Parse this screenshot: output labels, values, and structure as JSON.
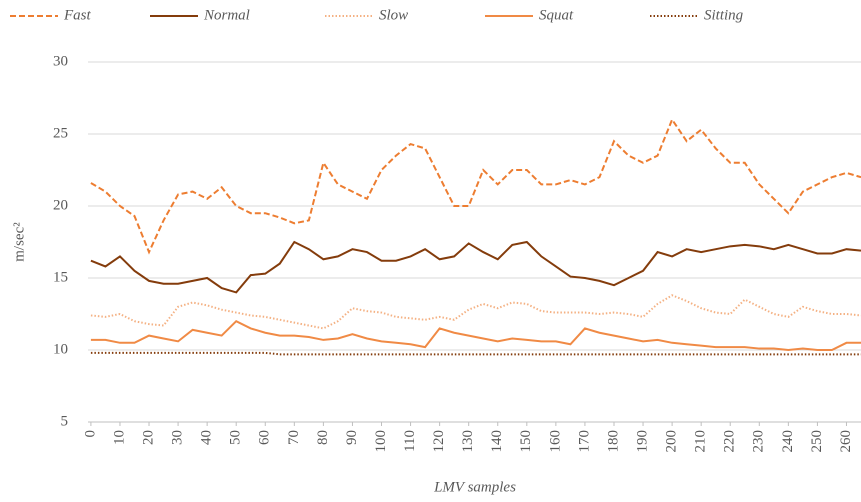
{
  "chart_data": {
    "type": "line",
    "xlabel": "LMV samples",
    "ylabel": "m/sec²",
    "x": [
      0,
      5,
      10,
      15,
      20,
      25,
      30,
      35,
      40,
      45,
      50,
      55,
      60,
      65,
      70,
      75,
      80,
      85,
      90,
      95,
      100,
      105,
      110,
      115,
      120,
      125,
      130,
      135,
      140,
      145,
      150,
      155,
      160,
      165,
      170,
      175,
      180,
      185,
      190,
      195,
      200,
      205,
      210,
      215,
      220,
      225,
      230,
      235,
      240,
      245,
      250,
      255,
      260,
      265
    ],
    "xlim": [
      -1,
      265
    ],
    "xticks": [
      0,
      10,
      20,
      30,
      40,
      50,
      60,
      70,
      80,
      90,
      100,
      110,
      120,
      130,
      140,
      150,
      160,
      170,
      180,
      190,
      200,
      210,
      220,
      230,
      240,
      250,
      260
    ],
    "ylim": [
      5,
      30
    ],
    "yticks": [
      5,
      10,
      15,
      20,
      25,
      30
    ],
    "grid": true,
    "legend": "top",
    "series": [
      {
        "name": "Fast",
        "color": "#ed7d31",
        "dash": "dashed",
        "values": [
          21.6,
          21,
          20,
          19.3,
          16.8,
          19,
          20.8,
          21,
          20.5,
          21.3,
          20,
          19.5,
          19.5,
          19.2,
          18.8,
          19,
          23,
          21.5,
          21,
          20.5,
          22.5,
          23.5,
          24.3,
          24,
          22,
          20,
          20,
          22.5,
          21.5,
          22.5,
          22.5,
          21.5,
          21.5,
          21.8,
          21.5,
          22,
          24.5,
          23.5,
          23,
          23.5,
          26,
          24.5,
          25.3,
          24,
          23,
          23,
          21.5,
          20.5,
          19.5,
          21,
          21.5,
          22,
          22.3,
          22
        ]
      },
      {
        "name": "Normal",
        "color": "#843c0c",
        "dash": "solid",
        "values": [
          16.2,
          15.8,
          16.5,
          15.5,
          14.8,
          14.6,
          14.6,
          14.8,
          15,
          14.3,
          14,
          15.2,
          15.3,
          16,
          17.5,
          17,
          16.3,
          16.5,
          17,
          16.8,
          16.2,
          16.2,
          16.5,
          17,
          16.3,
          16.5,
          17.4,
          16.8,
          16.3,
          17.3,
          17.5,
          16.5,
          15.8,
          15.1,
          15,
          14.8,
          14.5,
          15,
          15.5,
          16.8,
          16.5,
          17,
          16.8,
          17,
          17.2,
          17.3,
          17.2,
          17,
          17.3,
          17,
          16.7,
          16.7,
          17,
          16.9
        ]
      },
      {
        "name": "Slow",
        "color": "#f4b183",
        "dash": "dotted",
        "values": [
          12.4,
          12.3,
          12.5,
          12,
          11.8,
          11.7,
          13,
          13.3,
          13.1,
          12.8,
          12.6,
          12.4,
          12.3,
          12.1,
          11.9,
          11.7,
          11.5,
          12,
          12.9,
          12.7,
          12.6,
          12.3,
          12.2,
          12.1,
          12.3,
          12.1,
          12.8,
          13.2,
          12.9,
          13.3,
          13.2,
          12.7,
          12.6,
          12.6,
          12.6,
          12.5,
          12.6,
          12.5,
          12.3,
          13.2,
          13.8,
          13.4,
          12.9,
          12.6,
          12.5,
          13.5,
          13,
          12.5,
          12.3,
          13,
          12.7,
          12.5,
          12.5,
          12.4
        ]
      },
      {
        "name": "Squat",
        "color": "#f08a45",
        "dash": "solid",
        "values": [
          10.7,
          10.7,
          10.5,
          10.5,
          11,
          10.8,
          10.6,
          11.4,
          11.2,
          11,
          12,
          11.5,
          11.2,
          11,
          11,
          10.9,
          10.7,
          10.8,
          11.1,
          10.8,
          10.6,
          10.5,
          10.4,
          10.2,
          11.5,
          11.2,
          11,
          10.8,
          10.6,
          10.8,
          10.7,
          10.6,
          10.6,
          10.4,
          11.5,
          11.2,
          11,
          10.8,
          10.6,
          10.7,
          10.5,
          10.4,
          10.3,
          10.2,
          10.2,
          10.2,
          10.1,
          10.1,
          10,
          10.1,
          10,
          10,
          10.5,
          10.5
        ]
      },
      {
        "name": "Sitting",
        "color": "#843c0c",
        "dash": "dotted",
        "values": [
          9.8,
          9.8,
          9.8,
          9.8,
          9.8,
          9.8,
          9.8,
          9.8,
          9.8,
          9.8,
          9.8,
          9.8,
          9.8,
          9.7,
          9.7,
          9.7,
          9.7,
          9.7,
          9.7,
          9.7,
          9.7,
          9.7,
          9.7,
          9.7,
          9.7,
          9.7,
          9.7,
          9.7,
          9.7,
          9.7,
          9.7,
          9.7,
          9.7,
          9.7,
          9.7,
          9.7,
          9.7,
          9.7,
          9.7,
          9.7,
          9.7,
          9.7,
          9.7,
          9.7,
          9.7,
          9.7,
          9.7,
          9.7,
          9.7,
          9.7,
          9.7,
          9.7,
          9.7,
          9.7
        ]
      }
    ]
  }
}
